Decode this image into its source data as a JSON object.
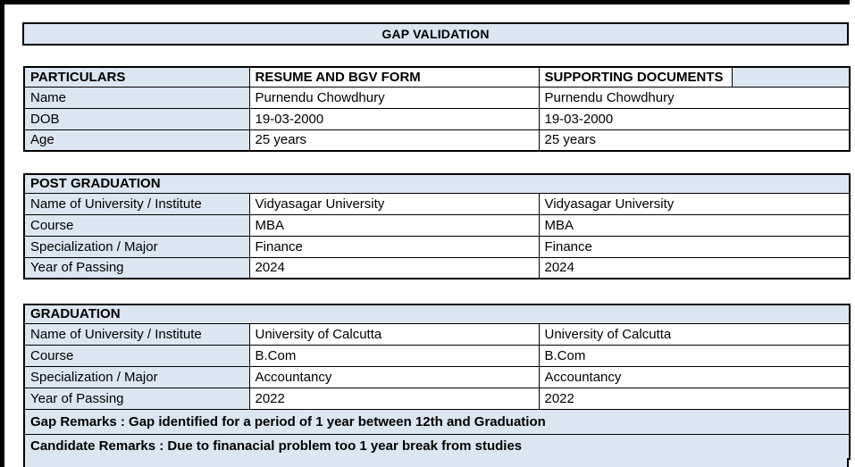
{
  "title": "GAP VALIDATION",
  "colors": {
    "header_fill": "#dce6f1",
    "border": "#000000",
    "page_background": "#ffffff",
    "text": "#000000"
  },
  "particulars_table": {
    "headers": [
      "PARTICULARS",
      "RESUME AND BGV FORM",
      "SUPPORTING DOCUMENTS"
    ],
    "rows": [
      {
        "label": "Name",
        "resume": "Purnendu Chowdhury",
        "supporting": "Purnendu Chowdhury"
      },
      {
        "label": "DOB",
        "resume": "19-03-2000",
        "supporting": "19-03-2000"
      },
      {
        "label": "Age",
        "resume": "25 years",
        "supporting": "25 years"
      }
    ]
  },
  "post_graduation": {
    "section_title": "POST GRADUATION",
    "rows": [
      {
        "label": "Name of University / Institute",
        "resume": "Vidyasagar University",
        "supporting": "Vidyasagar University"
      },
      {
        "label": "Course",
        "resume": "MBA",
        "supporting": "MBA"
      },
      {
        "label": "Specialization / Major",
        "resume": "Finance",
        "supporting": "Finance"
      },
      {
        "label": "Year of Passing",
        "resume": "2024",
        "supporting": "2024"
      }
    ]
  },
  "graduation": {
    "section_title": "GRADUATION",
    "rows": [
      {
        "label": "Name of University / Institute",
        "resume": "University of Calcutta",
        "supporting": "University of Calcutta"
      },
      {
        "label": "Course",
        "resume": "B.Com",
        "supporting": "B.Com"
      },
      {
        "label": "Specialization / Major",
        "resume": "Accountancy",
        "supporting": "Accountancy"
      },
      {
        "label": "Year of Passing",
        "resume": "2022",
        "supporting": "2022"
      }
    ],
    "gap_remarks": "Gap Remarks : Gap identified for a period of 1 year between 12th and Graduation",
    "candidate_remarks": "Candidate Remarks : Due to finanacial problem too 1 year break from studies"
  }
}
